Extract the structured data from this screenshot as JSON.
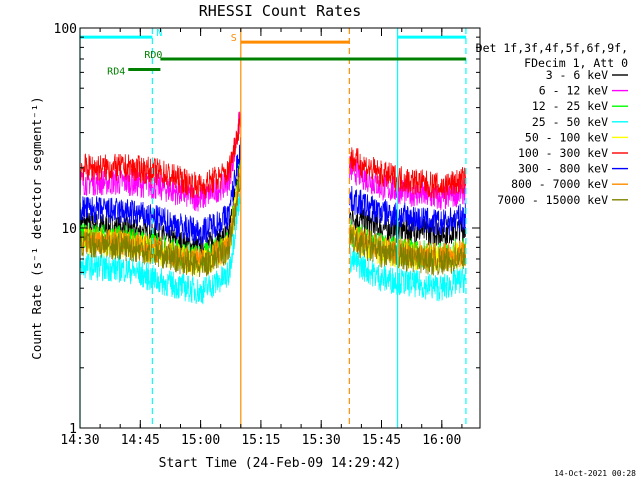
{
  "chart_data": {
    "type": "line",
    "title": "RHESSI Count Rates",
    "xlabel": "Start Time (24-Feb-09 14:29:42)",
    "ylabel": "Count Rate (s⁻¹ detector segment⁻¹)",
    "y_scale": "log",
    "ylim": [
      1,
      100
    ],
    "xlim": [
      "14:30",
      "16:06"
    ],
    "x_tick_labels": [
      "14:30",
      "14:45",
      "15:00",
      "15:15",
      "15:30",
      "15:45",
      "16:00"
    ],
    "y_tick_labels": [
      "1",
      "10",
      "100"
    ],
    "legend_header": [
      "Det 1f,3f,4f,5f,6f,9f,",
      "FDecim 1, Att 0"
    ],
    "legend_position": "right",
    "data_gap": [
      "15:10",
      "15:37"
    ],
    "series": [
      {
        "name": "3 - 6 keV",
        "color": "#000000",
        "x": [
          "14:30",
          "14:42",
          "14:50",
          "15:00",
          "15:07",
          "15:10",
          "15:37",
          "15:45",
          "16:00",
          "16:06"
        ],
        "values": [
          10.5,
          9.8,
          9.0,
          7.8,
          9.2,
          22,
          11.5,
          10.0,
          9.5,
          10.0
        ]
      },
      {
        "name": "6 - 12 keV",
        "color": "#ff00ff",
        "x": [
          "14:30",
          "14:42",
          "14:50",
          "15:00",
          "15:07",
          "15:10",
          "15:37",
          "15:45",
          "16:00",
          "16:06"
        ],
        "values": [
          17,
          17,
          16,
          14,
          17,
          37,
          20,
          16,
          14,
          15.5
        ]
      },
      {
        "name": "12 - 25 keV",
        "color": "#00ff00",
        "x": [
          "14:30",
          "14:42",
          "14:50",
          "15:00",
          "15:07",
          "15:10",
          "15:37",
          "15:45",
          "16:00",
          "16:06"
        ],
        "values": [
          9.2,
          8.8,
          8.0,
          7.0,
          8.5,
          20,
          9.5,
          8.0,
          7.2,
          7.8
        ]
      },
      {
        "name": "25 - 50 keV",
        "color": "#00ffff",
        "x": [
          "14:30",
          "14:42",
          "14:50",
          "15:00",
          "15:07",
          "15:10",
          "15:37",
          "15:45",
          "16:00",
          "16:06"
        ],
        "values": [
          6.5,
          6.2,
          5.4,
          4.8,
          5.8,
          16,
          7.0,
          5.6,
          5.0,
          5.6
        ]
      },
      {
        "name": "50 - 100 keV",
        "color": "#ffff00",
        "x": [
          "14:30",
          "14:42",
          "14:50",
          "15:00",
          "15:07",
          "15:10",
          "15:37",
          "15:45",
          "16:00",
          "16:06"
        ],
        "values": [
          8.6,
          8.2,
          7.6,
          6.6,
          8.0,
          19,
          9.0,
          7.6,
          6.9,
          7.4
        ]
      },
      {
        "name": "100 - 300 keV",
        "color": "#ff0000",
        "x": [
          "14:30",
          "14:42",
          "14:50",
          "15:00",
          "15:07",
          "15:10",
          "15:37",
          "15:45",
          "16:00",
          "16:06"
        ],
        "values": [
          20,
          20,
          19,
          16,
          19,
          36,
          22.5,
          18.5,
          16,
          17.5
        ]
      },
      {
        "name": "300 - 800 keV",
        "color": "#0000ff",
        "x": [
          "14:30",
          "14:42",
          "14:50",
          "15:00",
          "15:07",
          "15:10",
          "15:37",
          "15:45",
          "16:00",
          "16:06"
        ],
        "values": [
          12.5,
          12,
          11,
          9.5,
          11.5,
          27,
          14,
          12,
          10.5,
          11.5
        ]
      },
      {
        "name": "800 - 7000 keV",
        "color": "#ff8c00",
        "x": [
          "14:30",
          "14:42",
          "14:50",
          "15:00",
          "15:07",
          "15:10",
          "15:37",
          "15:45",
          "16:00",
          "16:06"
        ],
        "values": [
          8.8,
          8.4,
          7.8,
          6.8,
          8.1,
          19.5,
          9.2,
          7.9,
          7.1,
          7.6
        ]
      },
      {
        "name": "7000 - 15000 keV",
        "color": "#808000",
        "x": [
          "14:30",
          "14:42",
          "14:50",
          "15:00",
          "15:07",
          "15:10",
          "15:37",
          "15:45",
          "16:00",
          "16:06"
        ],
        "values": [
          8.4,
          8.0,
          7.4,
          6.4,
          7.8,
          18.5,
          8.8,
          7.4,
          6.7,
          7.2
        ]
      }
    ],
    "vertical_markers": [
      {
        "time": "14:30",
        "color": "#00ffff",
        "style": "solid"
      },
      {
        "time": "14:48",
        "color": "#00ffff",
        "style": "dashed"
      },
      {
        "time": "15:10",
        "color": "#ff8c00",
        "style": "solid"
      },
      {
        "time": "15:37",
        "color": "#ff8c00",
        "style": "dashed"
      },
      {
        "time": "15:49",
        "color": "#00ffff",
        "style": "solid"
      },
      {
        "time": "16:06",
        "color": "#00ffff",
        "style": "dashed"
      }
    ],
    "interval_bars": [
      {
        "label": "N",
        "color": "#00ffff",
        "ranges": [
          [
            "14:30",
            "14:48"
          ],
          [
            "15:49",
            "16:06"
          ]
        ],
        "level": 90
      },
      {
        "label": "S",
        "color": "#ff8c00",
        "ranges": [
          [
            "15:10",
            "15:37"
          ]
        ],
        "level": 85
      },
      {
        "label": "RD0",
        "color": "#008000",
        "ranges": [
          [
            "14:50",
            "16:06"
          ]
        ],
        "level": 70
      },
      {
        "label": "RD4",
        "color": "#008000",
        "ranges": [
          [
            "14:42",
            "14:50"
          ]
        ],
        "level": 62
      }
    ]
  },
  "footer": {
    "timestamp": "14-Oct-2021 00:28"
  }
}
